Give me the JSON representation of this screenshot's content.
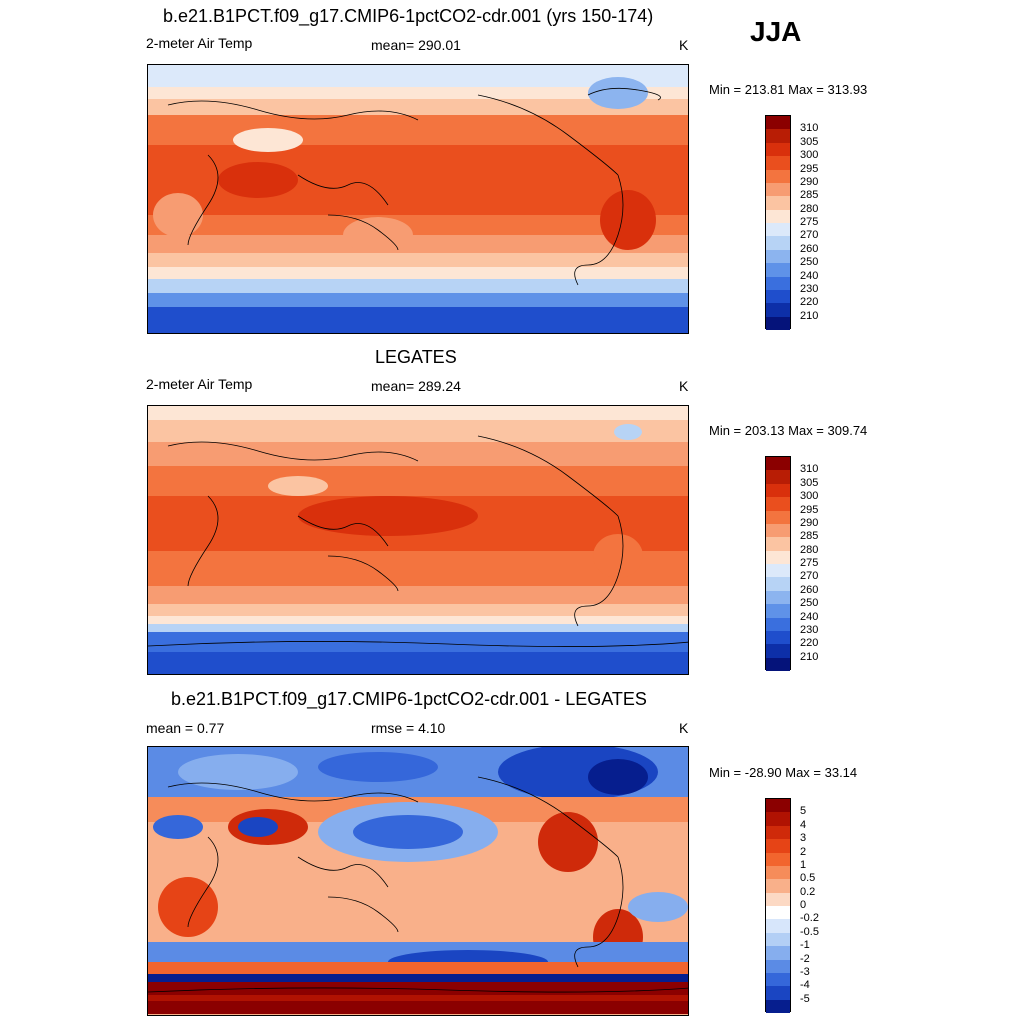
{
  "season": "JJA",
  "panels": [
    {
      "title": "b.e21.B1PCT.f09_g17.CMIP6-1pctCO2-cdr.001 (yrs 150-174)",
      "left_label": "2-meter Air Temp",
      "center_label": "mean= 290.01",
      "units": "K",
      "minmax": "Min = 213.81 Max = 313.93",
      "colorbar_labels": [
        "310",
        "305",
        "300",
        "295",
        "290",
        "285",
        "280",
        "275",
        "270",
        "260",
        "250",
        "240",
        "230",
        "220",
        "210"
      ]
    },
    {
      "title": "LEGATES",
      "left_label": "2-meter Air Temp",
      "center_label": "mean= 289.24",
      "units": "K",
      "minmax": "Min = 203.13 Max = 309.74",
      "colorbar_labels": [
        "310",
        "305",
        "300",
        "295",
        "290",
        "285",
        "280",
        "275",
        "270",
        "260",
        "250",
        "240",
        "230",
        "220",
        "210"
      ]
    },
    {
      "title": "b.e21.B1PCT.f09_g17.CMIP6-1pctCO2-cdr.001 - LEGATES",
      "left_label": "mean =   0.77",
      "center_label": "rmse =   4.10",
      "units": "K",
      "minmax": "Min = -28.90 Max =  33.14",
      "colorbar_labels": [
        "5",
        "4",
        "3",
        "2",
        "1",
        "0.5",
        "0.2",
        "0",
        "-0.2",
        "-0.5",
        "-1",
        "-2",
        "-3",
        "-4",
        "-5"
      ]
    }
  ],
  "colors": {
    "abs_scale": [
      "#8b0000",
      "#b81d05",
      "#d9300c",
      "#ea4f1e",
      "#f3743f",
      "#f79c72",
      "#fbc4a2",
      "#fde6d5",
      "#dce9fa",
      "#b7d3f5",
      "#8cb4ef",
      "#5f92e8",
      "#3a6fde",
      "#1f4ecc",
      "#0d2fa8",
      "#05137a"
    ],
    "diff_scale": [
      "#8b0000",
      "#b01202",
      "#cf2a0a",
      "#e64416",
      "#f2652e",
      "#f68c5a",
      "#f9b08a",
      "#fcd9c4",
      "#ffffff",
      "#d7e6fb",
      "#b3cff5",
      "#86aeee",
      "#5b8be5",
      "#3567da",
      "#1a45c2",
      "#061e8e"
    ]
  }
}
